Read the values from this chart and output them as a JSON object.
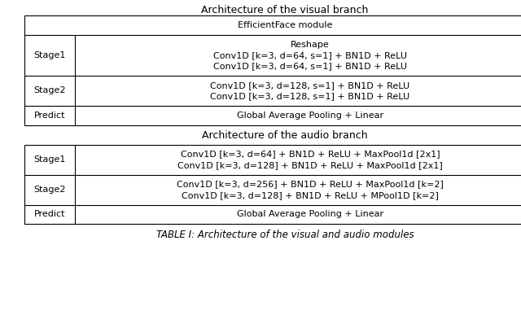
{
  "background_color": "#ffffff",
  "fig_title_visual": "Architecture of the visual branch",
  "fig_title_audio": "Architecture of the audio branch",
  "caption": "TABLE I: Architecture of the visual and audio modules",
  "visual_rows": [
    {
      "label": "",
      "lines": [
        "EfficientFace module"
      ],
      "header": true
    },
    {
      "label": "Stage1",
      "lines": [
        "Reshape",
        "Conv1D [k=3, d=64, s=1] + BN1D + ReLU",
        "Conv1D [k=3, d=64, s=1] + BN1D + ReLU"
      ]
    },
    {
      "label": "Stage2",
      "lines": [
        "Conv1D [k=3, d=128, s=1] + BN1D + ReLU",
        "Conv1D [k=3, d=128, s=1] + BN1D + ReLU"
      ]
    },
    {
      "label": "Predict",
      "lines": [
        "Global Average Pooling + Linear"
      ]
    }
  ],
  "audio_rows": [
    {
      "label": "Stage1",
      "lines": [
        "Conv1D [k=3, d=64] + BN1D + ReLU + MaxPool1d [2x1]",
        "Conv1D [k=3, d=128] + BN1D + ReLU + MaxPool1d [2x1]"
      ]
    },
    {
      "label": "Stage2",
      "lines": [
        "Conv1D [k=3, d=256] + BN1D + ReLU + MaxPool1d [k=2]",
        "Conv1D [k=3, d=128] + BN1D + ReLU + MPool1D [k=2]"
      ]
    },
    {
      "label": "Predict",
      "lines": [
        "Global Average Pooling + Linear"
      ]
    }
  ],
  "font_size": 8.0,
  "title_font_size": 9.0,
  "caption_font_size": 8.5,
  "line_color": "#000000",
  "text_color": "#000000"
}
